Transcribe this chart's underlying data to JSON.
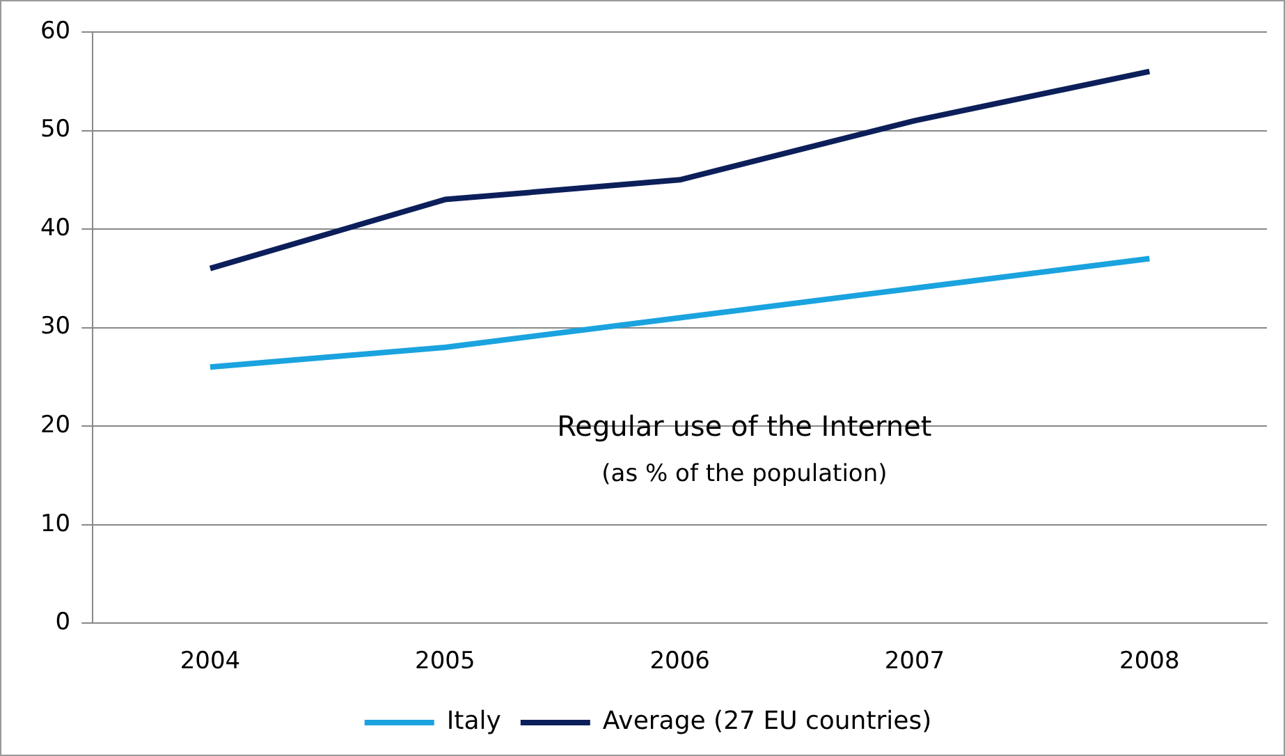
{
  "chart_data": {
    "type": "line",
    "title": "Regular use of the Internet",
    "subtitle": "(as % of the population)",
    "categories": [
      "2004",
      "2005",
      "2006",
      "2007",
      "2008"
    ],
    "series": [
      {
        "name": "Italy",
        "color": "#1aa3df",
        "values": [
          26,
          28,
          31,
          34,
          37
        ]
      },
      {
        "name": "Average (27 EU countries)",
        "color": "#0c1f5a",
        "values": [
          36,
          43,
          45,
          51,
          56
        ]
      }
    ],
    "ylim": [
      0,
      60
    ],
    "yticks": [
      0,
      10,
      20,
      30,
      40,
      50,
      60
    ],
    "grid": "y",
    "legend": "bottom",
    "marker": "none",
    "line_style": "solid"
  }
}
